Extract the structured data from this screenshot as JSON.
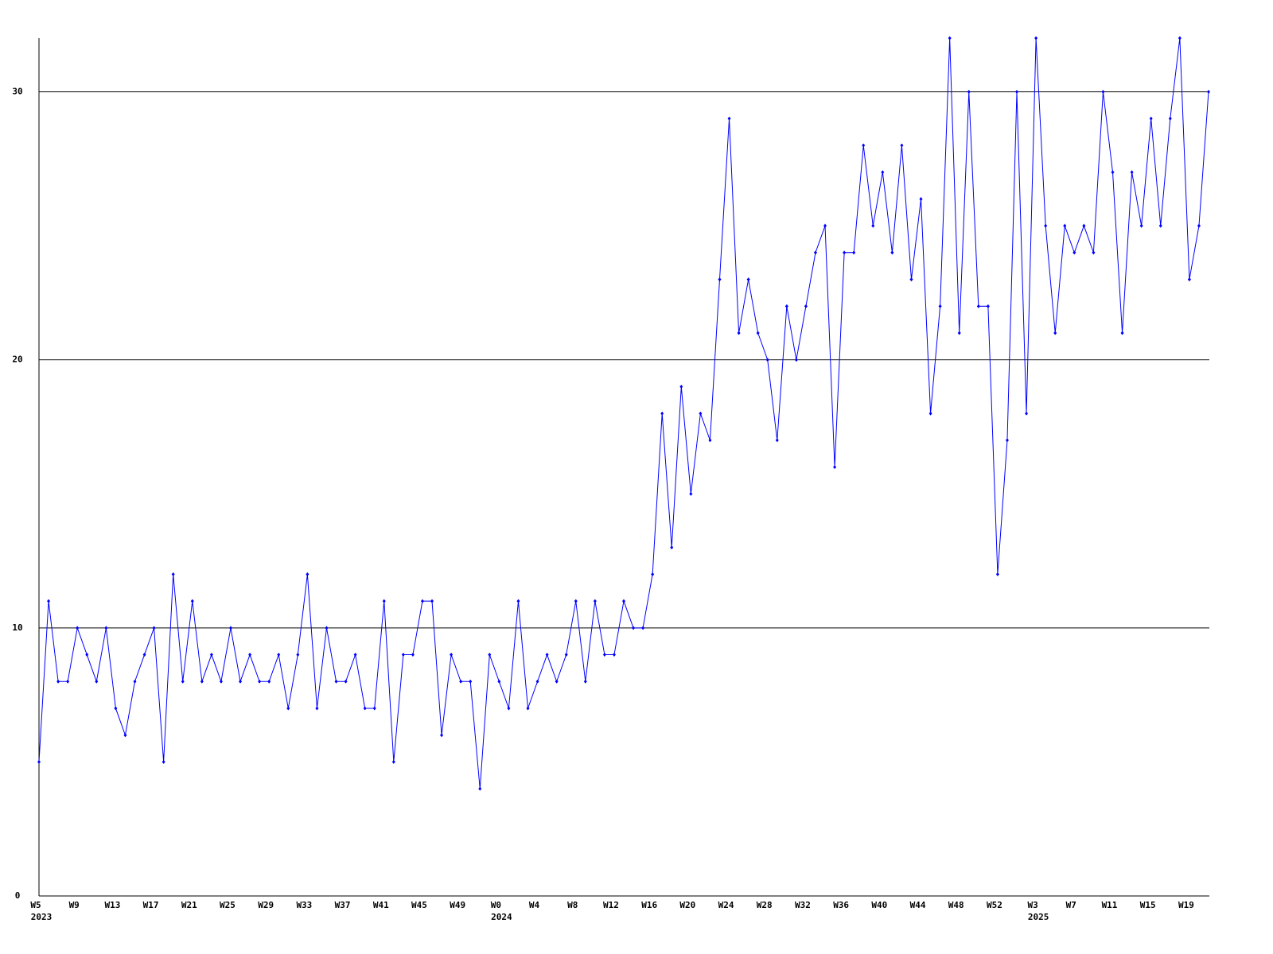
{
  "chart_data": {
    "type": "line",
    "categories": [
      "W5",
      null,
      null,
      null,
      "W9",
      null,
      null,
      null,
      "W13",
      null,
      null,
      null,
      "W17",
      null,
      null,
      null,
      "W21",
      null,
      null,
      null,
      "W25",
      null,
      null,
      null,
      "W29",
      null,
      null,
      null,
      "W33",
      null,
      null,
      null,
      "W37",
      null,
      null,
      null,
      "W41",
      null,
      null,
      null,
      "W45",
      null,
      null,
      null,
      "W49",
      null,
      null,
      null,
      "W0",
      null,
      null,
      null,
      "W4",
      null,
      null,
      null,
      "W8",
      null,
      null,
      null,
      "W12",
      null,
      null,
      null,
      "W16",
      null,
      null,
      null,
      "W20",
      null,
      null,
      null,
      "W24",
      null,
      null,
      null,
      "W28",
      null,
      null,
      null,
      "W32",
      null,
      null,
      null,
      "W36",
      null,
      null,
      null,
      "W40",
      null,
      null,
      null,
      "W44",
      null,
      null,
      null,
      "W48",
      null,
      null,
      null,
      "W52",
      null,
      null,
      null,
      "W3",
      null,
      null,
      null,
      "W7",
      null,
      null,
      null,
      "W11",
      null,
      null,
      null,
      "W15",
      null,
      null,
      null,
      "W19",
      null,
      null
    ],
    "category_years": [
      "2023",
      null,
      null,
      null,
      null,
      null,
      null,
      null,
      null,
      null,
      null,
      null,
      null,
      null,
      null,
      null,
      null,
      null,
      null,
      null,
      null,
      null,
      null,
      null,
      null,
      null,
      null,
      null,
      null,
      null,
      null,
      null,
      null,
      null,
      null,
      null,
      null,
      null,
      null,
      null,
      null,
      null,
      null,
      null,
      null,
      null,
      null,
      null,
      "2024",
      null,
      null,
      null,
      null,
      null,
      null,
      null,
      null,
      null,
      null,
      null,
      null,
      null,
      null,
      null,
      null,
      null,
      null,
      null,
      null,
      null,
      null,
      null,
      null,
      null,
      null,
      null,
      null,
      null,
      null,
      null,
      null,
      null,
      null,
      null,
      null,
      null,
      null,
      null,
      null,
      null,
      null,
      null,
      null,
      null,
      null,
      null,
      null,
      null,
      null,
      null,
      null,
      null,
      null,
      null,
      "2025",
      null,
      null,
      null,
      null,
      null,
      null,
      null,
      null,
      null,
      null,
      null,
      null,
      null,
      null,
      null,
      null,
      null
    ],
    "values": [
      5,
      11,
      8,
      8,
      10,
      9,
      8,
      10,
      7,
      6,
      8,
      9,
      10,
      5,
      12,
      8,
      11,
      8,
      9,
      8,
      10,
      8,
      9,
      8,
      8,
      9,
      7,
      9,
      12,
      7,
      10,
      8,
      8,
      9,
      7,
      7,
      11,
      5,
      9,
      9,
      11,
      11,
      6,
      9,
      8,
      8,
      4,
      9,
      8,
      7,
      11,
      7,
      8,
      9,
      8,
      9,
      11,
      8,
      11,
      9,
      9,
      11,
      10,
      10,
      12,
      18,
      13,
      19,
      15,
      18,
      17,
      23,
      29,
      21,
      23,
      21,
      20,
      17,
      22,
      20,
      22,
      24,
      25,
      16,
      24,
      24,
      28,
      25,
      27,
      24,
      28,
      23,
      26,
      18,
      22,
      32,
      21,
      30,
      22,
      22,
      12,
      17,
      30,
      18,
      32,
      25,
      21,
      25,
      24,
      25,
      24,
      30,
      27,
      21,
      27,
      25,
      29,
      25,
      29,
      32,
      23,
      25,
      30
    ],
    "color": "#0000ff",
    "ylim": [
      0,
      32
    ],
    "yticks": [
      0,
      10,
      20,
      30
    ],
    "grid": true
  }
}
